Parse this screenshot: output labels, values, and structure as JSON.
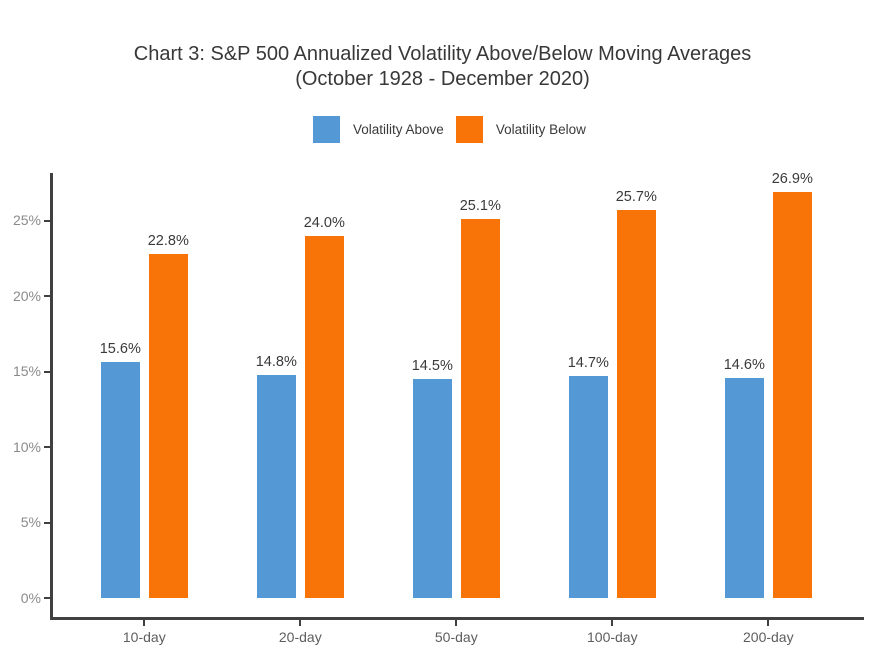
{
  "title": {
    "line1": "Chart 3: S&P 500 Annualized Volatility Above/Below Moving Averages",
    "line2": "(October 1928 - December 2020)"
  },
  "legend": {
    "items": [
      {
        "label": "Volatility Above",
        "color": "#5499D6"
      },
      {
        "label": "Volatility Below",
        "color": "#F97408"
      }
    ]
  },
  "colors": {
    "above_blue": "#5499D6",
    "below_orange": "#F97408",
    "axis_line": "#404040",
    "title_text": "#383838",
    "ytick_text": "#8a8a8a",
    "xtick_text": "#5d5d5d",
    "bar_label_text": "#3a3a3a"
  },
  "chart_data": {
    "type": "bar",
    "title": "Chart 3: S&P 500 Annualized Volatility Above/Below Moving Averages",
    "subtitle": "(October 1928 - December 2020)",
    "categories": [
      "10-day",
      "20-day",
      "50-day",
      "100-day",
      "200-day"
    ],
    "series": [
      {
        "name": "Volatility Above",
        "color": "#5499D6",
        "values": [
          15.6,
          14.8,
          14.5,
          14.7,
          14.6
        ],
        "labels": [
          "15.6%",
          "14.8%",
          "14.5%",
          "14.7%",
          "14.6%"
        ]
      },
      {
        "name": "Volatility Below",
        "color": "#F97408",
        "values": [
          22.8,
          24.0,
          25.1,
          25.7,
          26.9
        ],
        "labels": [
          "22.8%",
          "24.0%",
          "25.1%",
          "25.7%",
          "26.9%"
        ]
      }
    ],
    "yticks": {
      "values": [
        0,
        5,
        10,
        15,
        20,
        25
      ],
      "labels": [
        "0%",
        "5%",
        "10%",
        "15%",
        "20%",
        "25%"
      ]
    },
    "ylim": [
      0,
      28.3
    ],
    "xlabel": "",
    "ylabel": "",
    "grid": false,
    "legend_position": "top-center",
    "value_labels": "above-bars"
  }
}
